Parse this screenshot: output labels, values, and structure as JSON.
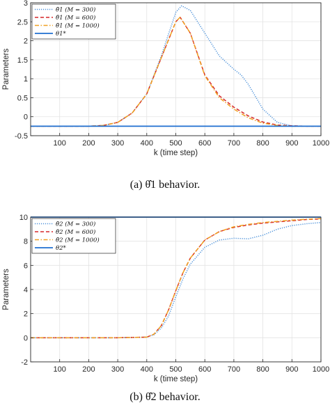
{
  "chart_data": [
    {
      "type": "line",
      "xlabel": "k (time step)",
      "ylabel": "Parameters",
      "xlim": [
        0,
        1000
      ],
      "ylim": [
        -0.5,
        3
      ],
      "xticks": [
        100,
        200,
        300,
        400,
        500,
        600,
        700,
        800,
        900,
        1000
      ],
      "yticks": [
        -0.5,
        0,
        0.5,
        1,
        1.5,
        2,
        2.5,
        3
      ],
      "ytick_labels": [
        "-0.5",
        "0",
        "0.5",
        "1",
        "1.5",
        "2",
        "2.5",
        "3"
      ],
      "grid": true,
      "legend_position": "top-left",
      "caption": "(a) θ̂1 behavior.",
      "series": [
        {
          "name": "θ̂1 (M = 300)",
          "color": "#4a90d9",
          "style": "dotted",
          "x": [
            0,
            100,
            200,
            250,
            300,
            350,
            400,
            450,
            500,
            520,
            550,
            600,
            650,
            700,
            725,
            750,
            800,
            850,
            900,
            950,
            1000
          ],
          "y": [
            -0.25,
            -0.25,
            -0.25,
            -0.23,
            -0.15,
            0.1,
            0.6,
            1.6,
            2.75,
            2.92,
            2.8,
            2.2,
            1.6,
            1.25,
            1.1,
            0.85,
            0.2,
            -0.15,
            -0.24,
            -0.25,
            -0.25
          ]
        },
        {
          "name": "θ̂1 (M = 600)",
          "color": "#d62728",
          "style": "dashed",
          "x": [
            0,
            100,
            200,
            250,
            300,
            350,
            400,
            450,
            500,
            515,
            550,
            600,
            650,
            700,
            750,
            800,
            850,
            900,
            950,
            1000
          ],
          "y": [
            -0.25,
            -0.25,
            -0.25,
            -0.23,
            -0.15,
            0.1,
            0.6,
            1.55,
            2.5,
            2.62,
            2.2,
            1.1,
            0.55,
            0.25,
            0.02,
            -0.14,
            -0.22,
            -0.24,
            -0.25,
            -0.25
          ]
        },
        {
          "name": "θ̂1 (M = 1000)",
          "color": "#f0a020",
          "style": "dashdot",
          "x": [
            0,
            100,
            200,
            250,
            300,
            350,
            400,
            450,
            500,
            515,
            550,
            600,
            650,
            700,
            750,
            800,
            850,
            900,
            950,
            1000
          ],
          "y": [
            -0.25,
            -0.25,
            -0.25,
            -0.23,
            -0.15,
            0.1,
            0.6,
            1.55,
            2.5,
            2.62,
            2.2,
            1.08,
            0.5,
            0.2,
            -0.03,
            -0.17,
            -0.23,
            -0.25,
            -0.25,
            -0.25
          ]
        },
        {
          "name": "θ1*",
          "color": "#1f6fd0",
          "style": "solid",
          "x": [
            0,
            1000
          ],
          "y": [
            -0.25,
            -0.25
          ]
        }
      ]
    },
    {
      "type": "line",
      "xlabel": "k (time step)",
      "ylabel": "Parameters",
      "xlim": [
        0,
        1000
      ],
      "ylim": [
        -2,
        10
      ],
      "xticks": [
        100,
        200,
        300,
        400,
        500,
        600,
        700,
        800,
        900,
        1000
      ],
      "yticks": [
        -2,
        0,
        2,
        4,
        6,
        8,
        10
      ],
      "ytick_labels": [
        "-2",
        "0",
        "2",
        "4",
        "6",
        "8",
        "10"
      ],
      "grid": true,
      "legend_position": "top-left",
      "caption": "(b) θ̂2 behavior.",
      "series": [
        {
          "name": "θ̂2 (M = 300)",
          "color": "#4a90d9",
          "style": "dotted",
          "x": [
            0,
            100,
            200,
            300,
            400,
            425,
            450,
            475,
            500,
            525,
            550,
            600,
            650,
            700,
            750,
            800,
            850,
            900,
            950,
            1000
          ],
          "y": [
            0,
            0,
            0,
            0,
            0.05,
            0.25,
            0.8,
            1.8,
            3.4,
            4.9,
            6.1,
            7.5,
            8.1,
            8.25,
            8.2,
            8.5,
            9.0,
            9.3,
            9.45,
            9.55
          ]
        },
        {
          "name": "θ̂2 (M = 600)",
          "color": "#d62728",
          "style": "dashed",
          "x": [
            0,
            100,
            200,
            300,
            400,
            425,
            450,
            475,
            500,
            525,
            550,
            600,
            650,
            700,
            750,
            800,
            850,
            900,
            950,
            1000
          ],
          "y": [
            0,
            0,
            0,
            0,
            0.05,
            0.3,
            1.0,
            2.3,
            3.9,
            5.4,
            6.6,
            8.1,
            8.8,
            9.15,
            9.35,
            9.5,
            9.6,
            9.7,
            9.8,
            9.85
          ]
        },
        {
          "name": "θ̂2 (M = 1000)",
          "color": "#f0a020",
          "style": "dashdot",
          "x": [
            0,
            100,
            200,
            300,
            400,
            425,
            450,
            475,
            500,
            525,
            550,
            600,
            650,
            700,
            750,
            800,
            850,
            900,
            950,
            1000
          ],
          "y": [
            0,
            0,
            0,
            0,
            0.05,
            0.3,
            1.0,
            2.3,
            3.9,
            5.4,
            6.6,
            8.1,
            8.8,
            9.2,
            9.4,
            9.55,
            9.65,
            9.75,
            9.82,
            9.88
          ]
        },
        {
          "name": "θ2*",
          "color": "#1f6fd0",
          "style": "solid",
          "x": [
            0,
            1000
          ],
          "y": [
            10,
            10
          ]
        }
      ]
    }
  ]
}
